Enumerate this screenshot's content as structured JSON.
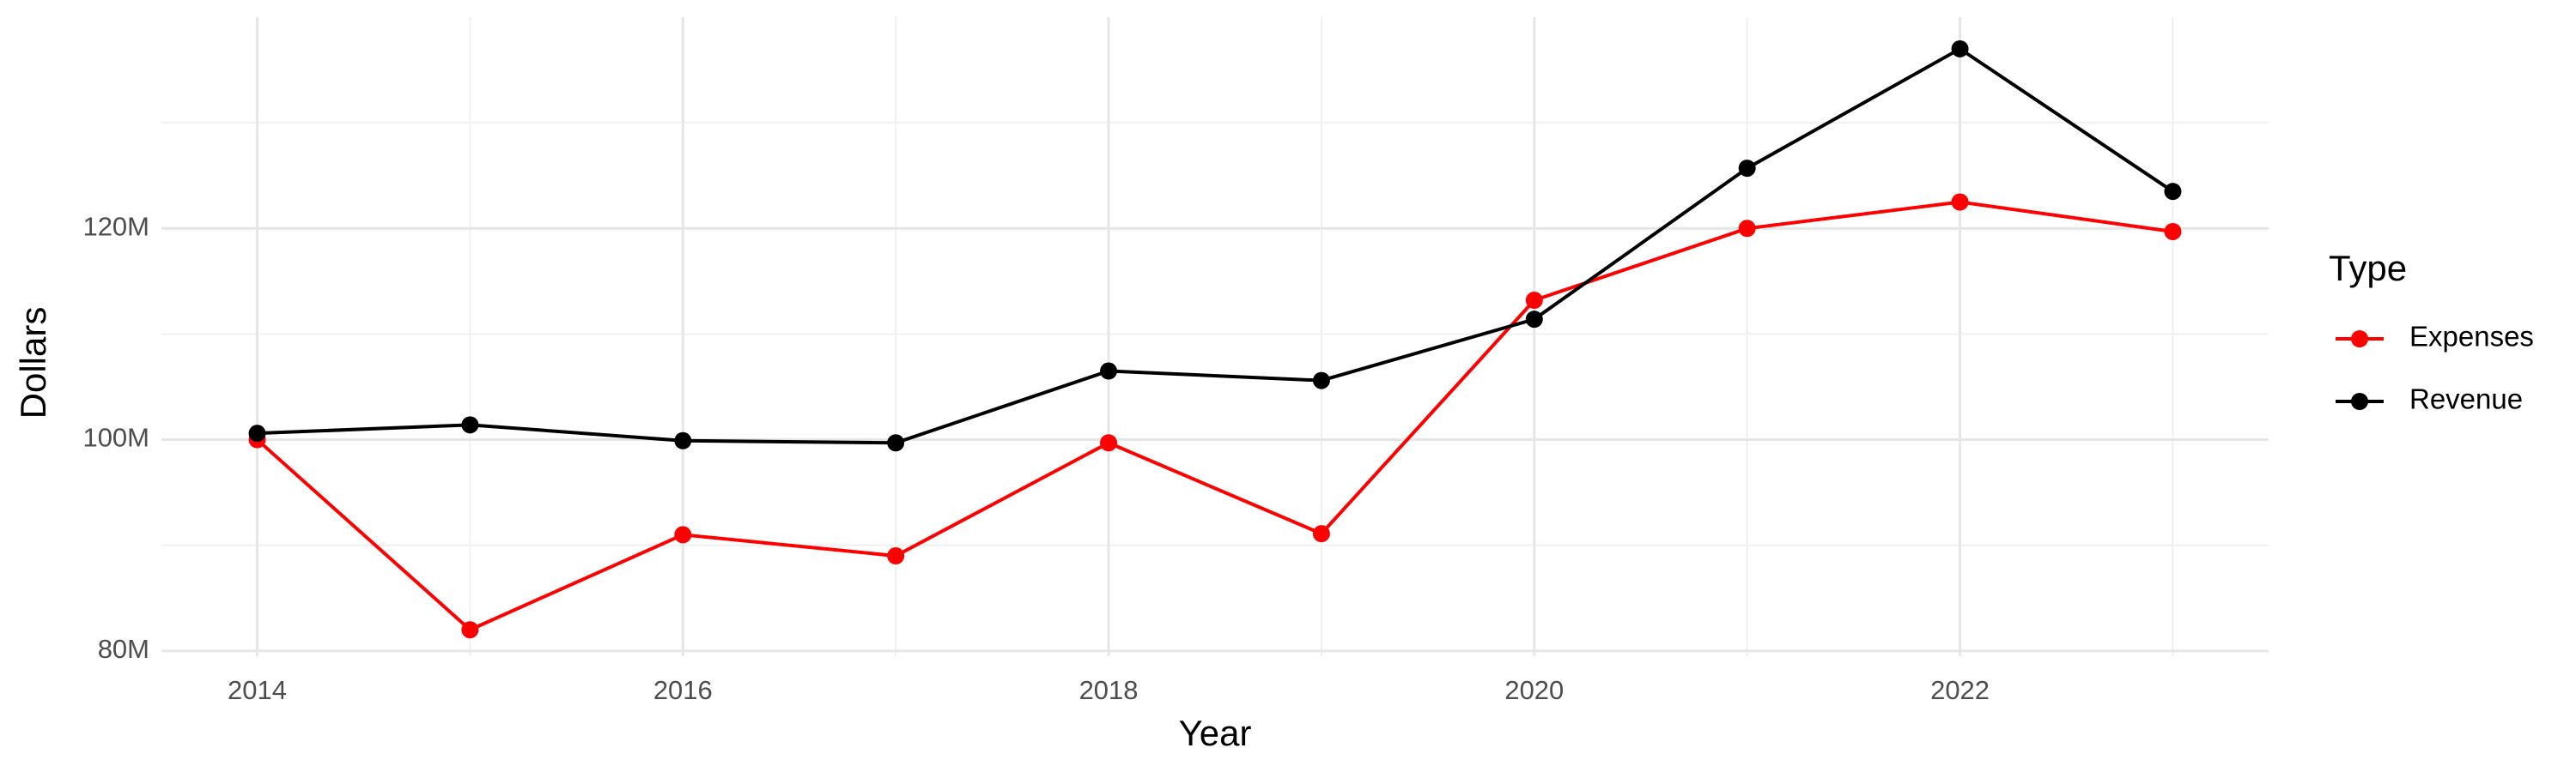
{
  "chart_data": {
    "type": "line",
    "x_label": "Year",
    "y_label": "Dollars",
    "legend_title": "Type",
    "legend_position": "right",
    "x": [
      2014,
      2015,
      2016,
      2017,
      2018,
      2019,
      2020,
      2021,
      2022,
      2023
    ],
    "series": [
      {
        "name": "Expenses",
        "color": "#ff0000",
        "values": [
          100000000,
          82000000,
          91000000,
          89000000,
          99700000,
          91100000,
          113200000,
          120000000,
          122500000,
          119700000
        ]
      },
      {
        "name": "Revenue",
        "color": "#000000",
        "values": [
          100600000,
          101400000,
          99900000,
          99700000,
          106500000,
          105600000,
          111400000,
          125700000,
          137000000,
          123500000
        ]
      }
    ],
    "xlim": [
      2013.55,
      2023.45
    ],
    "xticks": [
      2014,
      2016,
      2018,
      2020,
      2022
    ],
    "x_minor_ticks": [
      2015,
      2017,
      2019,
      2021,
      2023
    ],
    "ylim": [
      79500000,
      140000000
    ],
    "yticks": [
      {
        "value": 80000000,
        "label": "80M"
      },
      {
        "value": 100000000,
        "label": "100M"
      },
      {
        "value": 120000000,
        "label": "120M"
      }
    ],
    "y_minor_ticks": [
      90000000,
      110000000,
      130000000
    ],
    "grid": true
  }
}
